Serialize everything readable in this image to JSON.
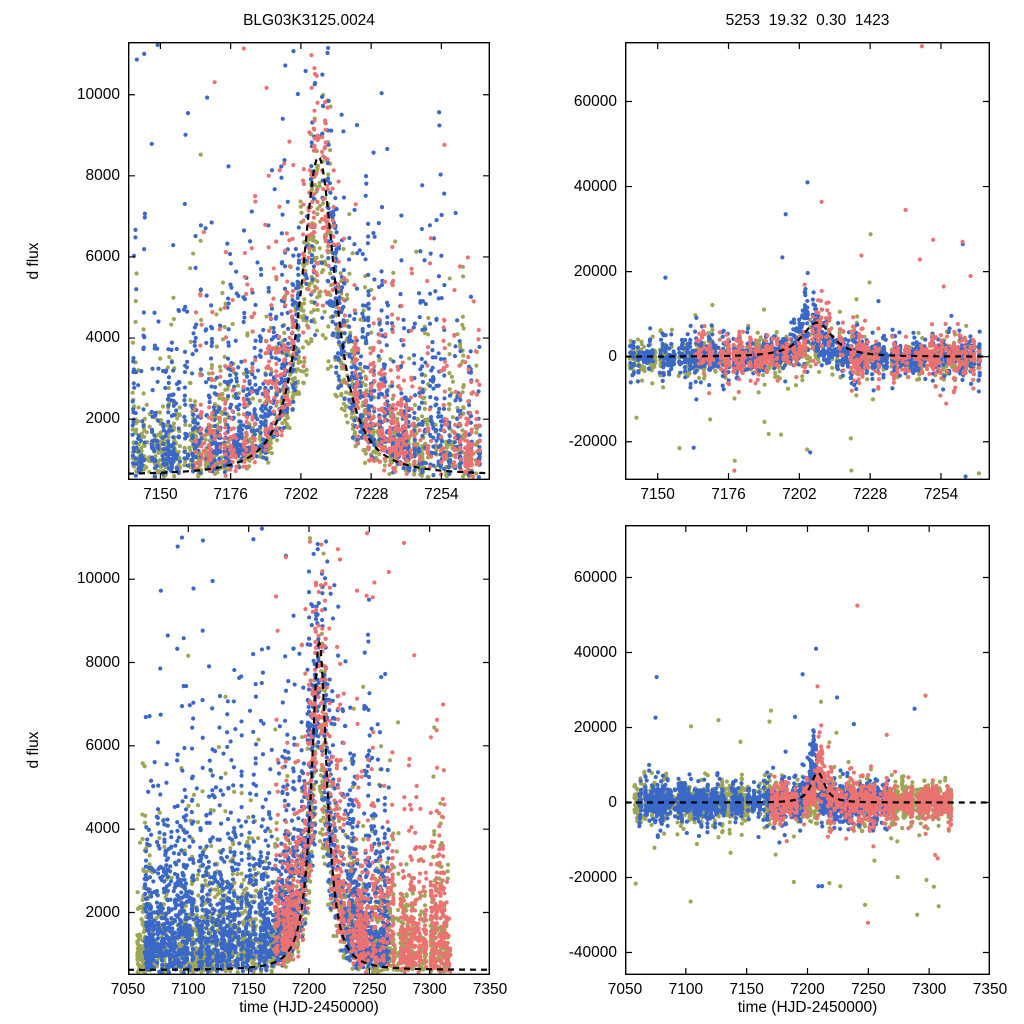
{
  "chart_data": {
    "type": "scatter",
    "description_xlabel": "time (HJD-2450000)",
    "marker_colors": {
      "blue": "#3a68c9",
      "olive": "#9ea554",
      "red": "#ec7272"
    },
    "model_line": {
      "color": "#000000",
      "style": "dashed"
    },
    "panels": [
      {
        "name": "top-left-flux",
        "kind": "flux",
        "title": "BLG03K3125.0024",
        "ylabel": "d flux",
        "xlabel": "",
        "xlim": [
          7138,
          7272
        ],
        "ylim": [
          500,
          11300
        ],
        "xticks": [
          7150,
          7176,
          7202,
          7228,
          7254
        ],
        "yticks": [
          2000,
          4000,
          6000,
          8000,
          10000
        ],
        "model": {
          "base": 620,
          "amp": 7850,
          "t0": 7208.5,
          "width": 9,
          "power": 1.3
        },
        "series": [
          {
            "name": "olive-points",
            "color": "#9ea554",
            "tmin": 7140,
            "tmax": 7268,
            "coverage": 0.75,
            "perNightMin": 6,
            "perNightMax": 20,
            "base": 650,
            "spread": 950,
            "resp": 0.8,
            "seed": 101
          },
          {
            "name": "blue-points",
            "color": "#3a68c9",
            "tmin": 7140,
            "tmax": 7268,
            "coverage": 0.8,
            "perNightMin": 8,
            "perNightMax": 24,
            "base": 700,
            "spread": 1600,
            "resp": 0.95,
            "seed": 102
          },
          {
            "name": "red-points",
            "color": "#ec7272",
            "tmin": 7163,
            "tmax": 7268,
            "coverage": 0.68,
            "perNightMin": 5,
            "perNightMax": 20,
            "base": 700,
            "spread": 1350,
            "resp": 1.0,
            "seed": 103
          }
        ]
      },
      {
        "name": "top-right-residual",
        "kind": "residual",
        "title": "5253  19.32  0.30  1423",
        "ylabel": "",
        "xlabel": "",
        "xlim": [
          7138,
          7272
        ],
        "ylim": [
          -29000,
          74000
        ],
        "xticks": [
          7150,
          7176,
          7202,
          7228,
          7254
        ],
        "yticks": [
          -20000,
          0,
          20000,
          40000,
          60000
        ],
        "model": {
          "base": 0,
          "amp": 8000,
          "t0": 7208.5,
          "width": 8,
          "power": 1.3
        },
        "series": [
          {
            "name": "olive-points",
            "color": "#9ea554",
            "tmin": 7140,
            "tmax": 7268,
            "coverage": 0.75,
            "perNightMin": 5,
            "perNightMax": 16,
            "sigma": 2600,
            "bamp": 2500,
            "bt0": 7208,
            "bw": 8,
            "outP": 0.012,
            "negBias": 0.62,
            "seed": 201,
            "extra": [
              [
                7158,
                -21500
              ],
              [
                7223,
                13500
              ]
            ]
          },
          {
            "name": "blue-points",
            "color": "#3a68c9",
            "tmin": 7140,
            "tmax": 7268,
            "coverage": 0.8,
            "perNightMin": 6,
            "perNightMax": 18,
            "sigma": 2400,
            "bamp": 17000,
            "bt0": 7205.5,
            "bw": 3.5,
            "outP": 0.007,
            "negBias": 0.45,
            "seed": 202,
            "extra": [
              [
                7205,
                41000
              ],
              [
                7197,
                33500
              ],
              [
                7262,
                26500
              ],
              [
                7206,
                -22500
              ]
            ]
          },
          {
            "name": "red-points",
            "color": "#ec7272",
            "tmin": 7163,
            "tmax": 7268,
            "coverage": 0.68,
            "perNightMin": 5,
            "perNightMax": 16,
            "sigma": 2500,
            "bamp": 13000,
            "bt0": 7211,
            "bw": 5,
            "outP": 0.01,
            "negBias": 0.3,
            "seed": 203,
            "extra": [
              [
                7247,
                73000
              ],
              [
                7241,
                34500
              ],
              [
                7255,
                16500
              ]
            ]
          }
        ]
      },
      {
        "name": "bottom-left-flux",
        "kind": "flux",
        "title": "",
        "ylabel": "d flux",
        "xlabel": "time (HJD-2450000)",
        "xlim": [
          7050,
          7350
        ],
        "ylim": [
          500,
          11300
        ],
        "xticks": [
          7050,
          7100,
          7150,
          7200,
          7250,
          7300,
          7350
        ],
        "yticks": [
          2000,
          4000,
          6000,
          8000,
          10000
        ],
        "model": {
          "base": 620,
          "amp": 7850,
          "t0": 7208.5,
          "width": 9,
          "power": 1.3
        },
        "series": [
          {
            "name": "olive-points",
            "color": "#9ea554",
            "tmin": 7058,
            "tmax": 7318,
            "coverage": 0.72,
            "perNightMin": 5,
            "perNightMax": 18,
            "base": 650,
            "spread": 950,
            "resp": 0.8,
            "seed": 301
          },
          {
            "name": "blue-points",
            "color": "#3a68c9",
            "tmin": 7062,
            "tmax": 7266,
            "coverage": 0.8,
            "perNightMin": 8,
            "perNightMax": 24,
            "base": 700,
            "spread": 1600,
            "resp": 0.95,
            "seed": 302
          },
          {
            "name": "red-points",
            "color": "#ec7272",
            "tmin": 7170,
            "tmax": 7318,
            "coverage": 0.7,
            "perNightMin": 5,
            "perNightMax": 20,
            "base": 700,
            "spread": 1350,
            "resp": 1.0,
            "seed": 303
          }
        ]
      },
      {
        "name": "bottom-right-residual",
        "kind": "residual",
        "title": "",
        "ylabel": "",
        "xlabel": "time (HJD-2450000)",
        "xlim": [
          7050,
          7350
        ],
        "ylim": [
          -46000,
          74000
        ],
        "xticks": [
          7050,
          7100,
          7150,
          7200,
          7250,
          7300,
          7350
        ],
        "yticks": [
          -40000,
          -20000,
          0,
          20000,
          40000,
          60000
        ],
        "model": {
          "base": 0,
          "amp": 8000,
          "t0": 7208.5,
          "width": 8,
          "power": 1.3
        },
        "series": [
          {
            "name": "olive-points",
            "color": "#9ea554",
            "tmin": 7058,
            "tmax": 7318,
            "coverage": 0.72,
            "perNightMin": 5,
            "perNightMax": 16,
            "sigma": 2600,
            "bamp": 2500,
            "bt0": 7208,
            "bw": 8,
            "outP": 0.012,
            "negBias": 0.62,
            "seed": 401,
            "extra": [
              [
                7218,
                -21500
              ],
              [
                7170,
                24500
              ],
              [
                7255,
                -15500
              ]
            ]
          },
          {
            "name": "blue-points",
            "color": "#3a68c9",
            "tmin": 7062,
            "tmax": 7266,
            "coverage": 0.8,
            "perNightMin": 6,
            "perNightMax": 18,
            "sigma": 2400,
            "bamp": 17000,
            "bt0": 7205.5,
            "bw": 3.5,
            "outP": 0.007,
            "negBias": 0.45,
            "seed": 402,
            "extra": [
              [
                7207,
                41000
              ],
              [
                7196,
                34200
              ],
              [
                7288,
                25000
              ],
              [
                7212,
                -22300
              ]
            ]
          },
          {
            "name": "red-points",
            "color": "#ec7272",
            "tmin": 7170,
            "tmax": 7318,
            "coverage": 0.7,
            "perNightMin": 5,
            "perNightMax": 16,
            "sigma": 2500,
            "bamp": 13000,
            "bt0": 7211,
            "bw": 5,
            "outP": 0.01,
            "negBias": 0.3,
            "seed": 403,
            "extra": [
              [
                7229,
                73500
              ],
              [
                7241,
                52500
              ],
              [
                7297,
                28500
              ],
              [
                7305,
                -14000
              ]
            ]
          }
        ]
      }
    ]
  }
}
